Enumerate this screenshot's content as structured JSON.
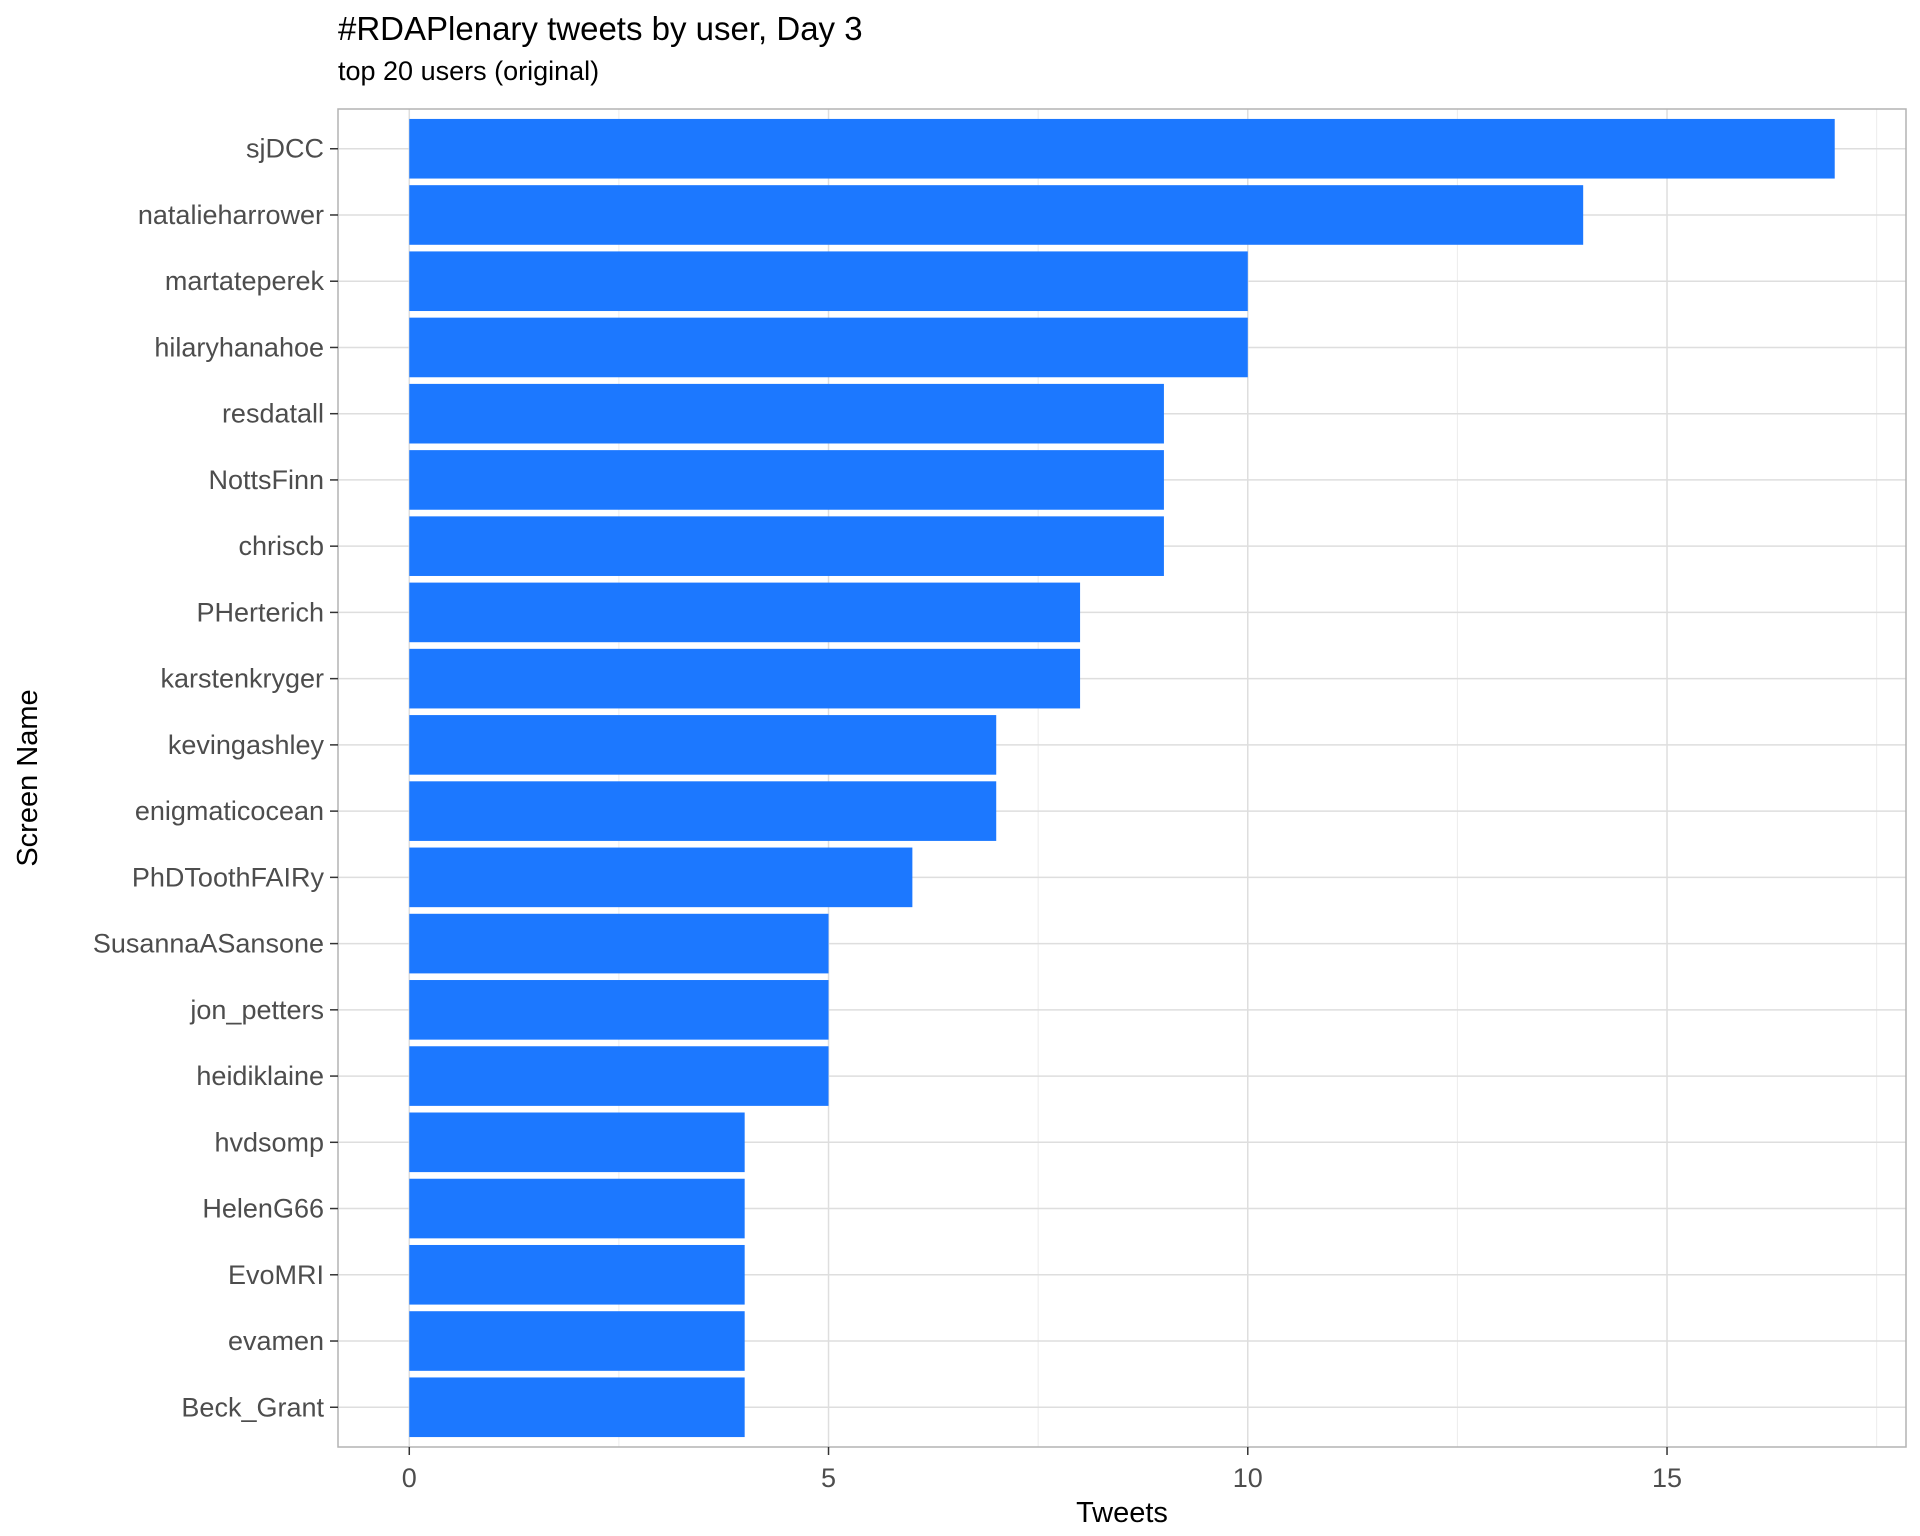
{
  "chart_data": {
    "type": "bar",
    "orientation": "horizontal",
    "title": "#RDAPlenary tweets by user, Day 3",
    "subtitle": "top 20 users (original)",
    "xlabel": "Tweets",
    "ylabel": "Screen Name",
    "xlim": [
      -0.85,
      17.85
    ],
    "xticks": [
      0,
      5,
      10,
      15
    ],
    "grid": true,
    "bar_color": "#1c78ff",
    "categories": [
      "sjDCC",
      "natalieharrower",
      "martateperek",
      "hilaryhanahoe",
      "resdatall",
      "NottsFinn",
      "chriscb",
      "PHerterich",
      "karstenkryger",
      "kevingashley",
      "enigmaticocean",
      "PhDToothFAIRy",
      "SusannaASansone",
      "jon_petters",
      "heidiklaine",
      "hvdsomp",
      "HelenG66",
      "EvoMRI",
      "evamen",
      "Beck_Grant"
    ],
    "values": [
      17,
      14,
      10,
      10,
      9,
      9,
      9,
      8,
      8,
      7,
      7,
      6,
      5,
      5,
      5,
      4,
      4,
      4,
      4,
      4
    ]
  }
}
